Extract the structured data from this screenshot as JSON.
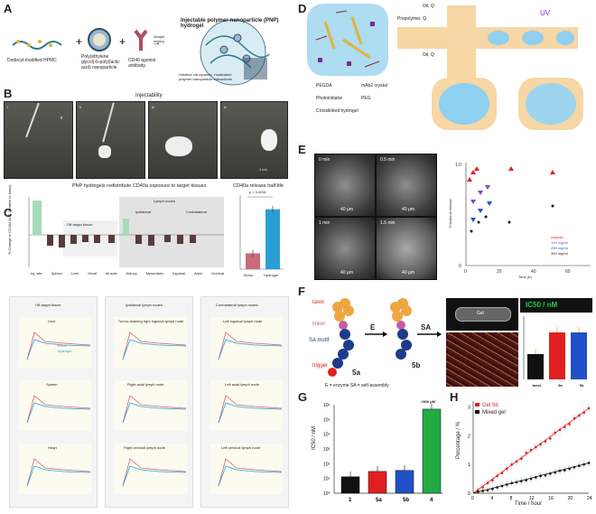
{
  "panel_labels": [
    "A",
    "B",
    "C",
    "D",
    "E",
    "F",
    "G",
    "H"
  ],
  "panelA": {
    "title": "Injectable polymer-nanoparticle (PNP) hydrogel",
    "comp1": "Dodecyl-modified HPMC",
    "comp2": "Poly(ethylene glycol)-b-poly(lactic acid) nanoparticle",
    "comp3": "CD40 agonist antibody",
    "arrow": "Simple mixing",
    "gel_note": "Gelation via dynamic, multivalent polymer-nanoparticle interactions"
  },
  "panelB": {
    "title": "Injectability",
    "frames": [
      "i",
      "ii",
      "iii",
      "iv"
    ],
    "g": "g",
    "scale": "1 cm"
  },
  "panelC": {
    "title": "PNP hydrogels redistribute CD40a exposure to target tissues",
    "halflife_title": "CD40a release half-life",
    "ylabel": "% Change in CD40a AUC (relative to bolus)",
    "tissues": [
      "Inj. site",
      "Spleen",
      "Liver",
      "Heart",
      "Muscle",
      "Kidney",
      "Mesenteric",
      "Inguinal",
      "Axial",
      "Cervical",
      "Inguinal",
      "Axial",
      "Cervical"
    ],
    "groups": [
      "Off-target tissue",
      "Lymph nodes",
      "Ipsilateral",
      "Contralateral"
    ],
    "halflife_categories": [
      "Bolus",
      "Hydrogel"
    ],
    "halflife_ylabel": "CD40a exposure via half-life",
    "pval": "p < 0.0001",
    "subpanel_titles": [
      "Off-target tissue",
      "Ipsilateral lymph nodes",
      "Contralateral lymph nodes"
    ],
    "subplots": [
      "Liver",
      "Tumor-draining right inguinal lymph node",
      "Left inguinal lymph node",
      "Spleen",
      "Right axial lymph node",
      "Left axial lymph node",
      "Heart",
      "Right cervical lymph node",
      "Left cervical lymph node"
    ],
    "legend": [
      "bolus",
      "hydrogel"
    ],
    "xlabel": "Days post-treatment",
    "ylab_small": "%ID / g"
  },
  "panelD": {
    "prepolymer": "Prepolymer, Q",
    "oil": "Oil, Q",
    "uv": "UV",
    "legend": [
      "PEGDA",
      "mAb2 crystal",
      "Photoinitiator",
      "PEG",
      "Crosslinked hydrogel"
    ]
  },
  "panelE": {
    "times": [
      "0 min",
      "0.5 min",
      "1 min",
      "1.5 min"
    ],
    "scale": "40 µm",
    "ylabel": "Fractional release",
    "xlabel": "Time (h)",
    "legend": [
      "crystals",
      "100 mg/ml",
      "200 mg/ml",
      "300 mg/ml"
    ]
  },
  "panelF": {
    "labels": [
      "taxol",
      "linker",
      "SA motif",
      "trigger"
    ],
    "mol1": "5a",
    "mol2": "5b",
    "arrow1": "E",
    "arrow2": "SA",
    "footnote": "E = enzyme    SA = self-assembly",
    "vial": "Gel",
    "ic_title": "IC50 / nM",
    "bars": [
      "taxol",
      "5a",
      "5b"
    ]
  },
  "chart_data": [
    {
      "type": "bar",
      "categories": [
        "1",
        "5a",
        "5b",
        "4"
      ],
      "values": [
        13,
        30,
        35,
        500000
      ],
      "ylabel": "IC50 / nM",
      "annotation": ">500 μM",
      "log_y": true,
      "ylim": [
        1,
        1000000
      ],
      "colors": [
        "#111111",
        "#e02020",
        "#2050c8",
        "#22aa44"
      ]
    },
    {
      "type": "line",
      "title": "",
      "xlabel": "Time / hour",
      "ylabel": "Percentage / %",
      "x_ticks": [
        0,
        4,
        8,
        12,
        16,
        20,
        24
      ],
      "y_ticks": [
        0,
        1,
        2,
        3
      ],
      "series": [
        {
          "name": "Gel 5b",
          "x": [
            1,
            2,
            3,
            4,
            5,
            6,
            7,
            8,
            9,
            10,
            11,
            12,
            13,
            14,
            15,
            16,
            17,
            18,
            19,
            20,
            21,
            22,
            23,
            24
          ],
          "values": [
            0.1,
            0.2,
            0.35,
            0.45,
            0.6,
            0.7,
            0.85,
            1.0,
            1.1,
            1.2,
            1.4,
            1.5,
            1.6,
            1.7,
            1.8,
            1.9,
            2.1,
            2.2,
            2.3,
            2.4,
            2.6,
            2.7,
            2.8,
            2.95
          ]
        },
        {
          "name": "Mixed gel",
          "x": [
            1,
            2,
            3,
            4,
            5,
            6,
            7,
            8,
            9,
            10,
            11,
            12,
            13,
            14,
            15,
            16,
            17,
            18,
            19,
            20,
            21,
            22,
            23,
            24
          ],
          "values": [
            0.05,
            0.08,
            0.1,
            0.15,
            0.2,
            0.25,
            0.3,
            0.35,
            0.38,
            0.42,
            0.45,
            0.5,
            0.55,
            0.6,
            0.62,
            0.68,
            0.72,
            0.78,
            0.8,
            0.85,
            0.9,
            0.95,
            1.0,
            1.05
          ]
        }
      ]
    },
    {
      "type": "bar",
      "title": "IC50 / nM",
      "categories": [
        "taxol",
        "5a",
        "5b"
      ],
      "values": [
        14,
        26,
        26
      ],
      "colors": [
        "#111111",
        "#e02020",
        "#2050c8"
      ]
    },
    {
      "type": "bar",
      "categories": [
        "Bolus",
        "Hydrogel"
      ],
      "values": [
        4.5,
        17
      ],
      "colors": [
        "#c96a7a",
        "#2a9fd6"
      ]
    }
  ]
}
